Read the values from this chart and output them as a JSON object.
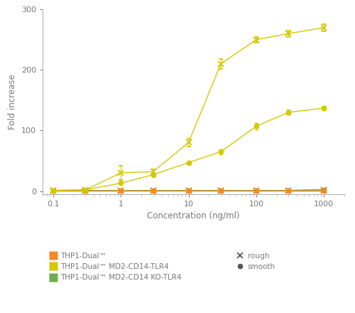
{
  "x_conc": [
    0.1,
    0.3,
    1,
    3,
    10,
    30,
    100,
    300,
    1000
  ],
  "rough_md2_tlr4": [
    1,
    2,
    30,
    32,
    80,
    210,
    250,
    260,
    270
  ],
  "rough_md2_tlr4_err": [
    0.5,
    1,
    12,
    4,
    6,
    8,
    5,
    5,
    6
  ],
  "smooth_md2_tlr4": [
    1,
    2,
    13,
    27,
    47,
    65,
    107,
    130,
    137
  ],
  "smooth_md2_tlr4_err": [
    0.3,
    0.5,
    1.5,
    2,
    3,
    4,
    5,
    4,
    4
  ],
  "rough_dual": [
    1,
    1,
    1,
    1,
    1,
    1,
    1,
    1,
    1
  ],
  "rough_dual_err": [
    0.2,
    0.2,
    0.2,
    0.2,
    0.2,
    0.2,
    0.2,
    0.2,
    0.2
  ],
  "smooth_dual": [
    1,
    1,
    1,
    1,
    1,
    1,
    1,
    1,
    1
  ],
  "smooth_dual_err": [
    0.2,
    0.2,
    0.2,
    0.2,
    0.2,
    0.2,
    0.2,
    0.2,
    0.2
  ],
  "rough_ko": [
    1,
    1,
    1,
    1,
    1,
    1,
    1,
    1,
    2
  ],
  "rough_ko_err": [
    0.2,
    0.2,
    0.2,
    0.2,
    0.2,
    0.2,
    0.2,
    0.2,
    0.3
  ],
  "smooth_ko": [
    1,
    1,
    1,
    1,
    1,
    1,
    1,
    1,
    2
  ],
  "smooth_ko_err": [
    0.2,
    0.2,
    0.2,
    0.2,
    0.2,
    0.2,
    0.2,
    0.2,
    0.3
  ],
  "color_dual": "#f5882a",
  "color_md2_tlr4": "#d4c800",
  "color_ko": "#6ab04c",
  "xlabel": "Concentration (ng/ml)",
  "ylabel": "Fold increase",
  "ylim": [
    -5,
    300
  ],
  "yticks": [
    0,
    100,
    200,
    300
  ],
  "bg_color": "#ffffff"
}
